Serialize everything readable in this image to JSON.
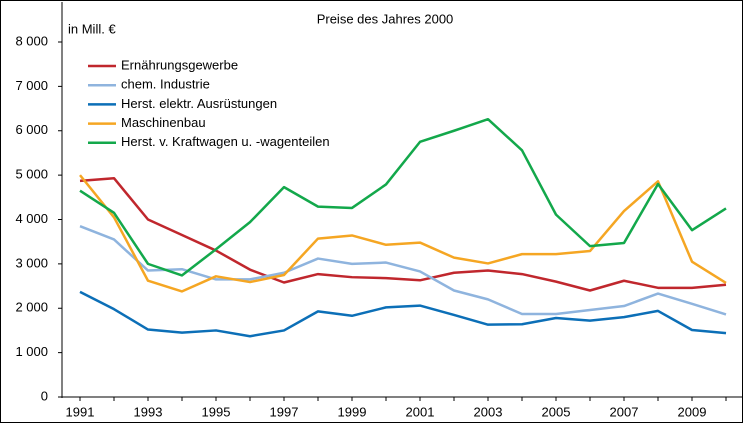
{
  "chart_data": {
    "type": "line",
    "title": "Preise des Jahres 2000",
    "y_axis_label": "in Mill. €",
    "categories": [
      "1991",
      null,
      "1993",
      null,
      "1995",
      null,
      "1997",
      null,
      "1999",
      null,
      "2001",
      null,
      "2003",
      null,
      "2005",
      null,
      "2007",
      null,
      "2009",
      null
    ],
    "series": [
      {
        "name": "Ernährungsgewerbe",
        "color": "#c0272d",
        "values": [
          4870,
          4930,
          4000,
          3650,
          3300,
          2870,
          2580,
          2770,
          2700,
          2680,
          2630,
          2800,
          2850,
          2770,
          2600,
          2400,
          2620,
          2460,
          2460,
          2530
        ]
      },
      {
        "name": "chem. Industrie",
        "color": "#8fb4de",
        "values": [
          3850,
          3550,
          2850,
          2880,
          2650,
          2650,
          2800,
          3120,
          3000,
          3030,
          2830,
          2400,
          2200,
          1870,
          1870,
          1960,
          2050,
          2330,
          2100,
          1860
        ]
      },
      {
        "name": "Herst. elektr. Ausrüstungen",
        "color": "#0c6fb7",
        "values": [
          2370,
          1980,
          1520,
          1450,
          1500,
          1370,
          1500,
          1930,
          1830,
          2020,
          2060,
          1850,
          1630,
          1640,
          1780,
          1720,
          1800,
          1940,
          1510,
          1440
        ]
      },
      {
        "name": "Maschinenbau",
        "color": "#f5a623",
        "values": [
          5000,
          4050,
          2620,
          2380,
          2720,
          2590,
          2750,
          3570,
          3640,
          3430,
          3480,
          3140,
          3010,
          3220,
          3220,
          3290,
          4190,
          4860,
          3050,
          2570
        ]
      },
      {
        "name": "Herst. v. Kraftwagen u. -wagenteilen",
        "color": "#13a84b",
        "values": [
          4650,
          4150,
          3000,
          2740,
          3330,
          3940,
          4730,
          4290,
          4260,
          4790,
          5750,
          6000,
          6260,
          5560,
          4110,
          3400,
          3470,
          4800,
          3760,
          4250
        ]
      }
    ],
    "ylim": [
      0,
      8000
    ],
    "yticks": [
      0,
      {
        "value": 1000,
        "label": "1 000"
      },
      {
        "value": 2000,
        "label": "2 000"
      },
      {
        "value": 3000,
        "label": "3 000"
      },
      {
        "value": 4000,
        "label": "4 000"
      },
      {
        "value": 5000,
        "label": "5 000"
      },
      {
        "value": 6000,
        "label": "6 000"
      },
      {
        "value": 7000,
        "label": "7 000"
      },
      {
        "value": 8000,
        "label": "8 000"
      }
    ],
    "grid": false,
    "legend": "upper left"
  }
}
